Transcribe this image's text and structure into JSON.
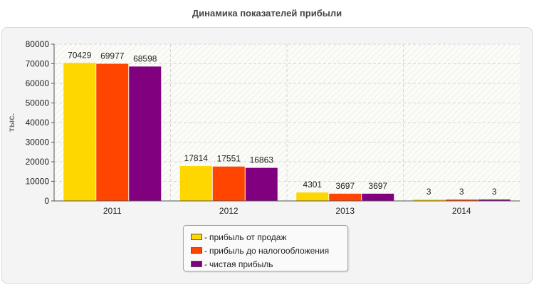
{
  "chart_data": {
    "type": "bar",
    "title": "Динамика показателей прибыли",
    "ylabel": "тыс.",
    "xlabel": "",
    "ylim": [
      0,
      80000
    ],
    "yticks": [
      0,
      10000,
      20000,
      30000,
      40000,
      50000,
      60000,
      70000,
      80000
    ],
    "categories": [
      "2011",
      "2012",
      "2013",
      "2014"
    ],
    "series": [
      {
        "name": "прибыль от продаж",
        "color": "#ffd700",
        "values": [
          70429,
          17814,
          4301,
          3
        ]
      },
      {
        "name": "прибыль до налогообложения",
        "color": "#ff4500",
        "values": [
          69977,
          17551,
          3697,
          3
        ]
      },
      {
        "name": "чистая прибыль",
        "color": "#800080",
        "values": [
          68598,
          16863,
          3697,
          3
        ]
      }
    ],
    "grid": true,
    "legend_position": "bottom-center"
  },
  "legend": {
    "dash": "-"
  }
}
